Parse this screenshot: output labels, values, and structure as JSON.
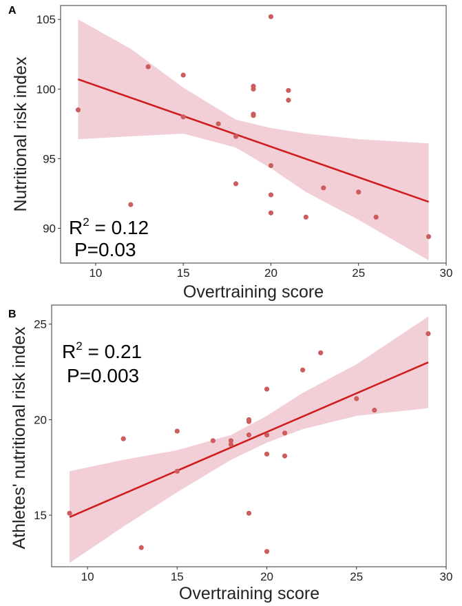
{
  "chart_data": [
    {
      "type": "scatter",
      "panel_label": "A",
      "xlabel": "Overtraining score",
      "ylabel": "Nutritional risk index",
      "xlim": [
        8,
        30
      ],
      "ylim": [
        87.5,
        106
      ],
      "x_ticks": [
        10,
        15,
        20,
        25,
        30
      ],
      "y_ticks": [
        90,
        95,
        100,
        105
      ],
      "grid": false,
      "points": [
        {
          "x": 9,
          "y": 98.5
        },
        {
          "x": 12,
          "y": 91.7
        },
        {
          "x": 13,
          "y": 101.6
        },
        {
          "x": 15,
          "y": 101.0
        },
        {
          "x": 15,
          "y": 98.0
        },
        {
          "x": 17,
          "y": 97.5
        },
        {
          "x": 18,
          "y": 96.6
        },
        {
          "x": 18,
          "y": 93.2
        },
        {
          "x": 19,
          "y": 100.2
        },
        {
          "x": 19,
          "y": 100.0
        },
        {
          "x": 19,
          "y": 98.2
        },
        {
          "x": 19,
          "y": 98.1
        },
        {
          "x": 20,
          "y": 105.2
        },
        {
          "x": 20,
          "y": 94.5
        },
        {
          "x": 20,
          "y": 92.4
        },
        {
          "x": 20,
          "y": 91.1
        },
        {
          "x": 21,
          "y": 99.9
        },
        {
          "x": 21,
          "y": 99.2
        },
        {
          "x": 22,
          "y": 90.8
        },
        {
          "x": 23,
          "y": 92.9
        },
        {
          "x": 25,
          "y": 92.6
        },
        {
          "x": 26,
          "y": 90.8
        },
        {
          "x": 29,
          "y": 89.4
        }
      ],
      "fit": {
        "x": [
          9,
          29
        ],
        "y": [
          100.7,
          91.9
        ]
      },
      "ci_band": {
        "x": [
          9,
          12,
          15,
          18,
          20,
          22,
          25,
          29
        ],
        "lower": [
          96.4,
          96.6,
          96.8,
          95.8,
          94.3,
          92.6,
          90.6,
          87.7
        ],
        "upper": [
          105.0,
          102.9,
          100.1,
          97.8,
          97.2,
          96.8,
          96.4,
          96.1
        ]
      },
      "annotation": {
        "r2_label": "R",
        "r2_sup": "2",
        "r2_value": " = 0.12",
        "p_text": "P=0.03"
      },
      "colors": {
        "point": "#cd5c5c",
        "line": "#d01c1c",
        "band": "#f2ced6"
      }
    },
    {
      "type": "scatter",
      "panel_label": "B",
      "xlabel": "Overtraining score",
      "ylabel": "Athletes' nutritional risk index",
      "xlim": [
        8,
        30
      ],
      "ylim": [
        12.3,
        26
      ],
      "x_ticks": [
        10,
        15,
        20,
        25,
        30
      ],
      "y_ticks": [
        15,
        20,
        25
      ],
      "grid": false,
      "points": [
        {
          "x": 9,
          "y": 15.1
        },
        {
          "x": 12,
          "y": 19.0
        },
        {
          "x": 13,
          "y": 13.3
        },
        {
          "x": 15,
          "y": 19.4
        },
        {
          "x": 15,
          "y": 17.3
        },
        {
          "x": 17,
          "y": 18.9
        },
        {
          "x": 18,
          "y": 18.9
        },
        {
          "x": 18,
          "y": 18.7
        },
        {
          "x": 19,
          "y": 20.0
        },
        {
          "x": 19,
          "y": 19.9
        },
        {
          "x": 19,
          "y": 19.2
        },
        {
          "x": 19,
          "y": 15.1
        },
        {
          "x": 20,
          "y": 21.6
        },
        {
          "x": 20,
          "y": 19.2
        },
        {
          "x": 20,
          "y": 18.2
        },
        {
          "x": 20,
          "y": 13.1
        },
        {
          "x": 21,
          "y": 19.3
        },
        {
          "x": 21,
          "y": 18.1
        },
        {
          "x": 22,
          "y": 22.6
        },
        {
          "x": 23,
          "y": 23.5
        },
        {
          "x": 25,
          "y": 21.1
        },
        {
          "x": 26,
          "y": 20.5
        },
        {
          "x": 29,
          "y": 24.5
        }
      ],
      "fit": {
        "x": [
          9,
          29
        ],
        "y": [
          14.9,
          23.0
        ]
      },
      "ci_band": {
        "x": [
          9,
          12,
          15,
          18,
          20,
          22,
          25,
          29
        ],
        "lower": [
          12.5,
          14.4,
          16.2,
          17.9,
          18.8,
          19.5,
          20.2,
          20.6
        ],
        "upper": [
          17.3,
          17.9,
          18.4,
          19.2,
          20.2,
          21.4,
          22.9,
          25.4
        ]
      },
      "annotation": {
        "r2_label": "R",
        "r2_sup": "2",
        "r2_value": " = 0.21",
        "p_text": "P=0.003"
      },
      "colors": {
        "point": "#cd5c5c",
        "line": "#d01c1c",
        "band": "#f2ced6"
      }
    }
  ]
}
